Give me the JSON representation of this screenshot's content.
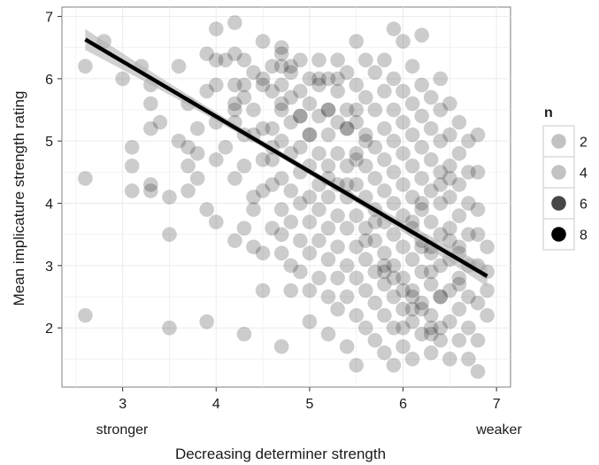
{
  "chart_data": {
    "type": "scatter",
    "title": "",
    "xlabel": "Decreasing determiner strength",
    "ylabel": "Mean implicature strength rating",
    "xlim": [
      2.35,
      7.15
    ],
    "ylim": [
      1.05,
      7.15
    ],
    "x_ticks": [
      3,
      4,
      5,
      6,
      7
    ],
    "y_ticks": [
      2,
      3,
      4,
      5,
      6,
      7
    ],
    "x_annotations": {
      "left": "stronger",
      "right": "weaker"
    },
    "grid": true,
    "background": "#ffffff",
    "grid_color": "#ebebeb",
    "point_color": "#000000",
    "line_color": "#000000",
    "ribbon_color": "#b3b3b3",
    "regression": {
      "x": [
        2.6,
        6.9
      ],
      "y": [
        6.63,
        2.83
      ],
      "ci_halfwidth_ends": 0.17,
      "ci_halfwidth_mid": 0.05,
      "ci_center_x": 4.9
    },
    "legend": {
      "title": "n",
      "position": "right",
      "entries": [
        {
          "label": "2",
          "n": 2
        },
        {
          "label": "4",
          "n": 4
        },
        {
          "label": "6",
          "n": 6
        },
        {
          "label": "8",
          "n": 8
        }
      ]
    },
    "points": [
      [
        2.6,
        6.2
      ],
      [
        2.6,
        4.4
      ],
      [
        2.6,
        2.2
      ],
      [
        2.8,
        6.6
      ],
      [
        3.0,
        6.0
      ],
      [
        3.1,
        4.9
      ],
      [
        3.1,
        4.6
      ],
      [
        3.1,
        4.2
      ],
      [
        3.2,
        6.2
      ],
      [
        3.3,
        5.9
      ],
      [
        3.3,
        5.6
      ],
      [
        3.3,
        5.2
      ],
      [
        3.3,
        4.3
      ],
      [
        3.3,
        4.2
      ],
      [
        3.4,
        5.3
      ],
      [
        3.5,
        4.1
      ],
      [
        3.5,
        3.5
      ],
      [
        3.5,
        2.0
      ],
      [
        3.6,
        6.2
      ],
      [
        3.6,
        5.0
      ],
      [
        3.7,
        5.6
      ],
      [
        3.7,
        4.9
      ],
      [
        3.7,
        4.6
      ],
      [
        3.7,
        4.2
      ],
      [
        3.8,
        5.2
      ],
      [
        3.8,
        4.8
      ],
      [
        3.8,
        4.4
      ],
      [
        3.9,
        6.4
      ],
      [
        3.9,
        5.8
      ],
      [
        3.9,
        3.9
      ],
      [
        3.9,
        2.1
      ],
      [
        4.0,
        6.8
      ],
      [
        4.0,
        6.3
      ],
      [
        4.0,
        5.9
      ],
      [
        4.0,
        4.7
      ],
      [
        4.0,
        3.7
      ],
      [
        4.1,
        6.3
      ],
      [
        4.1,
        4.9
      ],
      [
        4.2,
        6.9
      ],
      [
        4.2,
        6.4
      ],
      [
        4.2,
        5.9
      ],
      [
        4.2,
        5.5
      ],
      [
        4.2,
        4.4
      ],
      [
        4.2,
        3.4
      ],
      [
        4.3,
        6.3
      ],
      [
        4.3,
        5.9
      ],
      [
        4.3,
        5.7
      ],
      [
        4.3,
        5.1
      ],
      [
        4.3,
        4.6
      ],
      [
        4.3,
        3.6
      ],
      [
        4.3,
        1.9
      ],
      [
        4.4,
        6.1
      ],
      [
        4.4,
        5.5
      ],
      [
        4.4,
        4.1
      ],
      [
        4.4,
        3.9
      ],
      [
        4.4,
        3.3
      ],
      [
        4.5,
        6.6
      ],
      [
        4.5,
        5.9
      ],
      [
        4.5,
        5.2
      ],
      [
        4.5,
        4.7
      ],
      [
        4.5,
        4.2
      ],
      [
        4.5,
        3.2
      ],
      [
        4.5,
        2.6
      ],
      [
        4.6,
        6.2
      ],
      [
        4.6,
        5.8
      ],
      [
        4.6,
        5.2
      ],
      [
        4.6,
        4.7
      ],
      [
        4.6,
        4.3
      ],
      [
        4.6,
        3.6
      ],
      [
        4.7,
        6.5
      ],
      [
        4.7,
        6.2
      ],
      [
        4.7,
        5.9
      ],
      [
        4.7,
        5.5
      ],
      [
        4.7,
        5.0
      ],
      [
        4.7,
        4.4
      ],
      [
        4.7,
        3.9
      ],
      [
        4.7,
        3.5
      ],
      [
        4.7,
        3.2
      ],
      [
        4.7,
        1.7
      ],
      [
        4.8,
        6.1
      ],
      [
        4.8,
        5.7
      ],
      [
        4.8,
        5.3
      ],
      [
        4.8,
        4.8
      ],
      [
        4.8,
        4.2
      ],
      [
        4.8,
        3.7
      ],
      [
        4.8,
        3.0
      ],
      [
        4.8,
        2.6
      ],
      [
        4.9,
        6.3
      ],
      [
        4.9,
        5.8
      ],
      [
        4.9,
        5.4
      ],
      [
        4.9,
        4.9
      ],
      [
        4.9,
        4.5
      ],
      [
        4.9,
        4.0
      ],
      [
        4.9,
        3.4
      ],
      [
        4.9,
        2.9
      ],
      [
        5.0,
        6.0
      ],
      [
        5.0,
        5.6
      ],
      [
        5.0,
        5.1
      ],
      [
        5.0,
        4.6
      ],
      [
        5.0,
        4.1
      ],
      [
        5.0,
        3.7
      ],
      [
        5.0,
        3.2
      ],
      [
        5.0,
        2.6
      ],
      [
        5.0,
        2.1
      ],
      [
        5.1,
        6.3
      ],
      [
        5.1,
        5.9
      ],
      [
        5.1,
        5.4
      ],
      [
        5.1,
        4.8
      ],
      [
        5.1,
        4.3
      ],
      [
        5.1,
        3.9
      ],
      [
        5.1,
        3.4
      ],
      [
        5.1,
        2.8
      ],
      [
        5.2,
        6.0
      ],
      [
        5.2,
        5.5
      ],
      [
        5.2,
        5.1
      ],
      [
        5.2,
        4.6
      ],
      [
        5.2,
        4.1
      ],
      [
        5.2,
        3.6
      ],
      [
        5.2,
        3.1
      ],
      [
        5.2,
        2.5
      ],
      [
        5.2,
        1.9
      ],
      [
        5.3,
        6.3
      ],
      [
        5.3,
        5.8
      ],
      [
        5.3,
        5.3
      ],
      [
        5.3,
        4.8
      ],
      [
        5.3,
        4.3
      ],
      [
        5.3,
        3.8
      ],
      [
        5.3,
        3.3
      ],
      [
        5.3,
        2.8
      ],
      [
        5.3,
        2.3
      ],
      [
        5.4,
        6.1
      ],
      [
        5.4,
        5.5
      ],
      [
        5.4,
        5.2
      ],
      [
        5.4,
        4.6
      ],
      [
        5.4,
        4.1
      ],
      [
        5.4,
        3.6
      ],
      [
        5.4,
        3.0
      ],
      [
        5.4,
        2.5
      ],
      [
        5.4,
        1.7
      ],
      [
        5.5,
        6.6
      ],
      [
        5.5,
        5.9
      ],
      [
        5.5,
        5.3
      ],
      [
        5.5,
        4.8
      ],
      [
        5.5,
        4.3
      ],
      [
        5.5,
        3.8
      ],
      [
        5.5,
        3.3
      ],
      [
        5.5,
        2.8
      ],
      [
        5.5,
        2.2
      ],
      [
        5.5,
        1.4
      ],
      [
        5.6,
        6.3
      ],
      [
        5.6,
        5.7
      ],
      [
        5.6,
        5.1
      ],
      [
        5.6,
        4.6
      ],
      [
        5.6,
        4.1
      ],
      [
        5.6,
        3.6
      ],
      [
        5.6,
        3.1
      ],
      [
        5.6,
        2.6
      ],
      [
        5.6,
        2.0
      ],
      [
        5.7,
        6.1
      ],
      [
        5.7,
        5.5
      ],
      [
        5.7,
        4.9
      ],
      [
        5.7,
        4.4
      ],
      [
        5.7,
        3.9
      ],
      [
        5.7,
        3.4
      ],
      [
        5.7,
        2.9
      ],
      [
        5.7,
        2.4
      ],
      [
        5.7,
        1.8
      ],
      [
        5.8,
        6.3
      ],
      [
        5.8,
        5.8
      ],
      [
        5.8,
        5.2
      ],
      [
        5.8,
        4.7
      ],
      [
        5.8,
        4.2
      ],
      [
        5.8,
        3.7
      ],
      [
        5.8,
        3.2
      ],
      [
        5.8,
        2.7
      ],
      [
        5.8,
        2.2
      ],
      [
        5.8,
        1.6
      ],
      [
        5.9,
        6.8
      ],
      [
        5.9,
        6.0
      ],
      [
        5.9,
        5.5
      ],
      [
        5.9,
        5.0
      ],
      [
        5.9,
        4.5
      ],
      [
        5.9,
        4.0
      ],
      [
        5.9,
        3.5
      ],
      [
        5.9,
        3.0
      ],
      [
        5.9,
        2.5
      ],
      [
        5.9,
        2.0
      ],
      [
        5.9,
        1.4
      ],
      [
        6.0,
        6.6
      ],
      [
        6.0,
        5.8
      ],
      [
        6.0,
        5.3
      ],
      [
        6.0,
        4.8
      ],
      [
        6.0,
        4.3
      ],
      [
        6.0,
        3.8
      ],
      [
        6.0,
        3.3
      ],
      [
        6.0,
        2.8
      ],
      [
        6.0,
        2.3
      ],
      [
        6.0,
        1.7
      ],
      [
        6.1,
        6.2
      ],
      [
        6.1,
        5.6
      ],
      [
        6.1,
        5.1
      ],
      [
        6.1,
        4.6
      ],
      [
        6.1,
        4.1
      ],
      [
        6.1,
        3.6
      ],
      [
        6.1,
        3.1
      ],
      [
        6.1,
        2.6
      ],
      [
        6.1,
        2.1
      ],
      [
        6.1,
        1.5
      ],
      [
        6.2,
        6.7
      ],
      [
        6.2,
        5.9
      ],
      [
        6.2,
        5.4
      ],
      [
        6.2,
        4.9
      ],
      [
        6.2,
        4.4
      ],
      [
        6.2,
        3.9
      ],
      [
        6.2,
        3.4
      ],
      [
        6.2,
        2.9
      ],
      [
        6.2,
        2.4
      ],
      [
        6.2,
        1.9
      ],
      [
        6.3,
        5.7
      ],
      [
        6.3,
        5.2
      ],
      [
        6.3,
        4.7
      ],
      [
        6.3,
        4.2
      ],
      [
        6.3,
        3.7
      ],
      [
        6.3,
        3.2
      ],
      [
        6.3,
        2.7
      ],
      [
        6.3,
        2.2
      ],
      [
        6.3,
        1.6
      ],
      [
        6.4,
        6.0
      ],
      [
        6.4,
        5.5
      ],
      [
        6.4,
        5.0
      ],
      [
        6.4,
        4.5
      ],
      [
        6.4,
        4.0
      ],
      [
        6.4,
        3.5
      ],
      [
        6.4,
        3.0
      ],
      [
        6.4,
        2.5
      ],
      [
        6.4,
        2.0
      ],
      [
        6.5,
        5.6
      ],
      [
        6.5,
        5.1
      ],
      [
        6.5,
        4.6
      ],
      [
        6.5,
        4.1
      ],
      [
        6.5,
        3.6
      ],
      [
        6.5,
        3.1
      ],
      [
        6.5,
        2.6
      ],
      [
        6.5,
        2.1
      ],
      [
        6.5,
        1.5
      ],
      [
        6.6,
        5.3
      ],
      [
        6.6,
        4.8
      ],
      [
        6.6,
        4.3
      ],
      [
        6.6,
        3.8
      ],
      [
        6.6,
        3.3
      ],
      [
        6.6,
        2.8
      ],
      [
        6.6,
        2.3
      ],
      [
        6.6,
        1.8
      ],
      [
        6.7,
        5.0
      ],
      [
        6.7,
        4.5
      ],
      [
        6.7,
        4.0
      ],
      [
        6.7,
        3.5
      ],
      [
        6.7,
        3.0
      ],
      [
        6.7,
        2.5
      ],
      [
        6.7,
        2.0
      ],
      [
        6.7,
        1.5
      ],
      [
        6.8,
        5.1
      ],
      [
        6.8,
        4.5
      ],
      [
        6.8,
        3.9
      ],
      [
        6.8,
        3.5
      ],
      [
        6.8,
        3.0
      ],
      [
        6.8,
        2.4
      ],
      [
        6.8,
        1.8
      ],
      [
        6.8,
        1.3
      ],
      [
        6.9,
        3.3
      ],
      [
        6.9,
        2.9
      ],
      [
        6.9,
        2.6
      ],
      [
        6.9,
        2.2
      ],
      [
        4.2,
        5.3
      ],
      [
        4.0,
        5.3
      ],
      [
        5.4,
        5.2
      ],
      [
        5.2,
        5.5
      ],
      [
        5.5,
        4.7
      ],
      [
        6.1,
        2.5
      ],
      [
        6.1,
        2.3
      ],
      [
        6.4,
        2.5
      ],
      [
        6.3,
        2.9
      ],
      [
        6.3,
        2.0
      ],
      [
        6.3,
        1.9
      ],
      [
        6.1,
        3.7
      ],
      [
        6.2,
        3.3
      ],
      [
        6.6,
        3.2
      ],
      [
        6.5,
        4.4
      ],
      [
        6.4,
        4.3
      ],
      [
        6.2,
        4.0
      ],
      [
        6.0,
        2.6
      ],
      [
        5.9,
        2.8
      ],
      [
        5.8,
        3.0
      ],
      [
        5.7,
        3.7
      ],
      [
        5.6,
        5.0
      ],
      [
        5.5,
        5.5
      ],
      [
        5.3,
        6.0
      ],
      [
        5.1,
        6.0
      ],
      [
        4.9,
        5.4
      ],
      [
        4.7,
        5.6
      ],
      [
        4.6,
        4.9
      ],
      [
        4.4,
        5.1
      ],
      [
        4.2,
        5.6
      ],
      [
        4.5,
        6.0
      ],
      [
        4.7,
        6.4
      ],
      [
        4.8,
        6.2
      ],
      [
        5.0,
        5.1
      ],
      [
        5.2,
        4.4
      ],
      [
        5.4,
        4.3
      ],
      [
        5.6,
        3.4
      ],
      [
        5.8,
        2.9
      ],
      [
        6.0,
        2.0
      ],
      [
        6.2,
        2.3
      ],
      [
        6.4,
        1.8
      ],
      [
        6.3,
        3.3
      ],
      [
        6.5,
        3.4
      ],
      [
        6.6,
        2.7
      ]
    ]
  }
}
